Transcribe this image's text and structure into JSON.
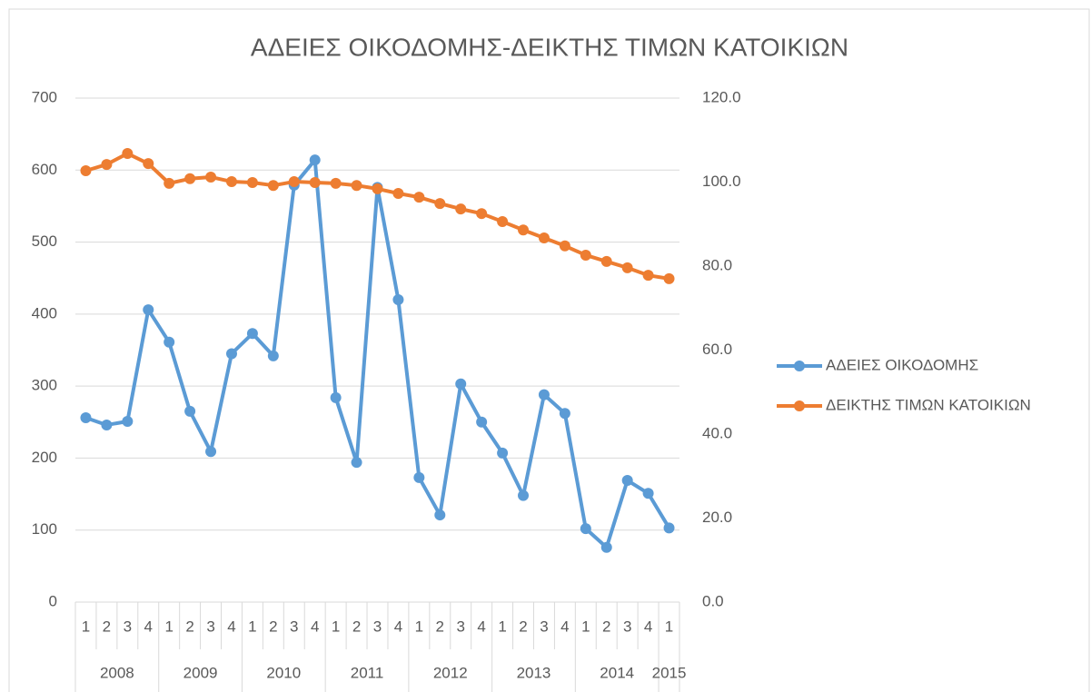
{
  "chart_data": {
    "type": "line",
    "title": "ΑΔΕΙΕΣ ΟΙΚΟΔΟΜΗΣ-ΔΕΙΚΤΗΣ ΤΙΜΩΝ ΚΑΤΟΙΚΙΩΝ",
    "categories": [
      "1",
      "2",
      "3",
      "4",
      "1",
      "2",
      "3",
      "4",
      "1",
      "2",
      "3",
      "4",
      "1",
      "2",
      "3",
      "4",
      "1",
      "2",
      "3",
      "4",
      "1",
      "2",
      "3",
      "4",
      "1",
      "2",
      "3",
      "4",
      "1"
    ],
    "category_groups": [
      "2008",
      null,
      null,
      null,
      "2009",
      null,
      null,
      null,
      "2010",
      null,
      null,
      null,
      "2011",
      null,
      null,
      null,
      "2012",
      null,
      null,
      null,
      "2013",
      null,
      null,
      null,
      "2014",
      null,
      null,
      null,
      "2015"
    ],
    "series": [
      {
        "name": "ΑΔΕΙΕΣ ΟΙΚΟΔΟΜΗΣ",
        "color": "#5b9bd5",
        "axis": "y",
        "values": [
          256,
          246,
          251,
          406,
          361,
          265,
          209,
          345,
          373,
          342,
          579,
          614,
          284,
          194,
          576,
          420,
          173,
          121,
          303,
          250,
          207,
          148,
          288,
          262,
          102,
          76,
          169,
          151,
          103
        ]
      },
      {
        "name": "ΔΕΙΚΤΗΣ ΤΙΜΩΝ ΚΑΤΟΙΚΙΩΝ",
        "color": "#ed7d31",
        "axis": "y2",
        "values": [
          102.7,
          104.2,
          106.8,
          104.4,
          99.7,
          100.8,
          101.2,
          100.1,
          99.9,
          99.2,
          100.1,
          99.9,
          99.7,
          99.2,
          98.4,
          97.3,
          96.4,
          94.9,
          93.6,
          92.5,
          90.6,
          88.6,
          86.7,
          84.8,
          82.6,
          81.1,
          79.6,
          77.8,
          77.0
        ]
      }
    ],
    "ylim": [
      0,
      700
    ],
    "yticks": [
      0,
      100,
      200,
      300,
      400,
      500,
      600,
      700
    ],
    "y2lim": [
      0,
      120
    ],
    "y2ticks": [
      {
        "value": 0,
        "label": "0.0"
      },
      {
        "value": 20,
        "label": "20.0"
      },
      {
        "value": 40,
        "label": "40.0"
      },
      {
        "value": 60,
        "label": "60.0"
      },
      {
        "value": 80,
        "label": "80.0"
      },
      {
        "value": 100,
        "label": "100.0"
      },
      {
        "value": 120,
        "label": "120.0"
      }
    ],
    "grid": true,
    "legend": "right"
  }
}
